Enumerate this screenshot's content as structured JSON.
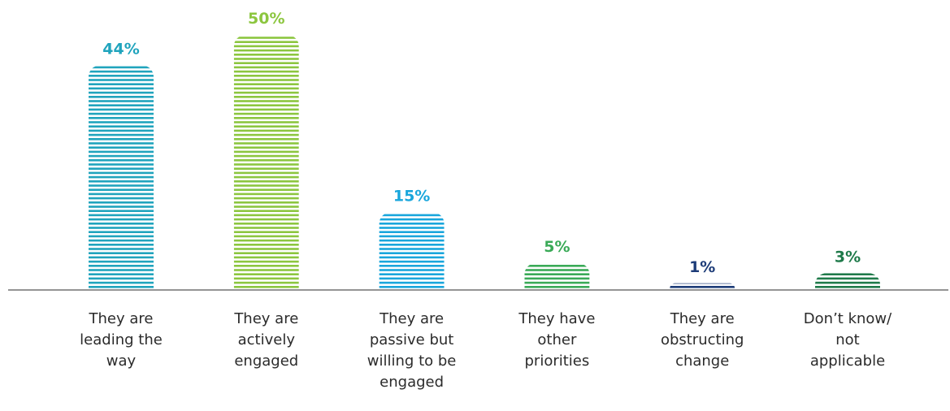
{
  "chart_data": {
    "type": "bar",
    "categories": [
      "They are leading the way",
      "They are actively engaged",
      "They are passive but willing to be engaged",
      "They have other priorities",
      "They are obstructing change",
      "Don’t know/ not applicable"
    ],
    "category_lines": [
      [
        "They are",
        "leading the",
        "way"
      ],
      [
        "They are",
        "actively",
        "engaged"
      ],
      [
        "They are",
        "passive but",
        "willing to be",
        "engaged"
      ],
      [
        "They have",
        "other",
        "priorities"
      ],
      [
        "They are",
        "obstructing",
        "change"
      ],
      [
        "Don’t know/",
        "not",
        "applicable"
      ]
    ],
    "values": [
      44,
      50,
      15,
      5,
      1,
      3
    ],
    "value_labels": [
      "44%",
      "50%",
      "15%",
      "5%",
      "1%",
      "3%"
    ],
    "colors": [
      "#20a4bd",
      "#8cc63f",
      "#19a6dc",
      "#3aaa57",
      "#1d3c78",
      "#1f7a4a"
    ],
    "ylim": [
      0,
      50
    ],
    "grid": false,
    "legend": "none",
    "bar_style": "horizontal-striped"
  }
}
